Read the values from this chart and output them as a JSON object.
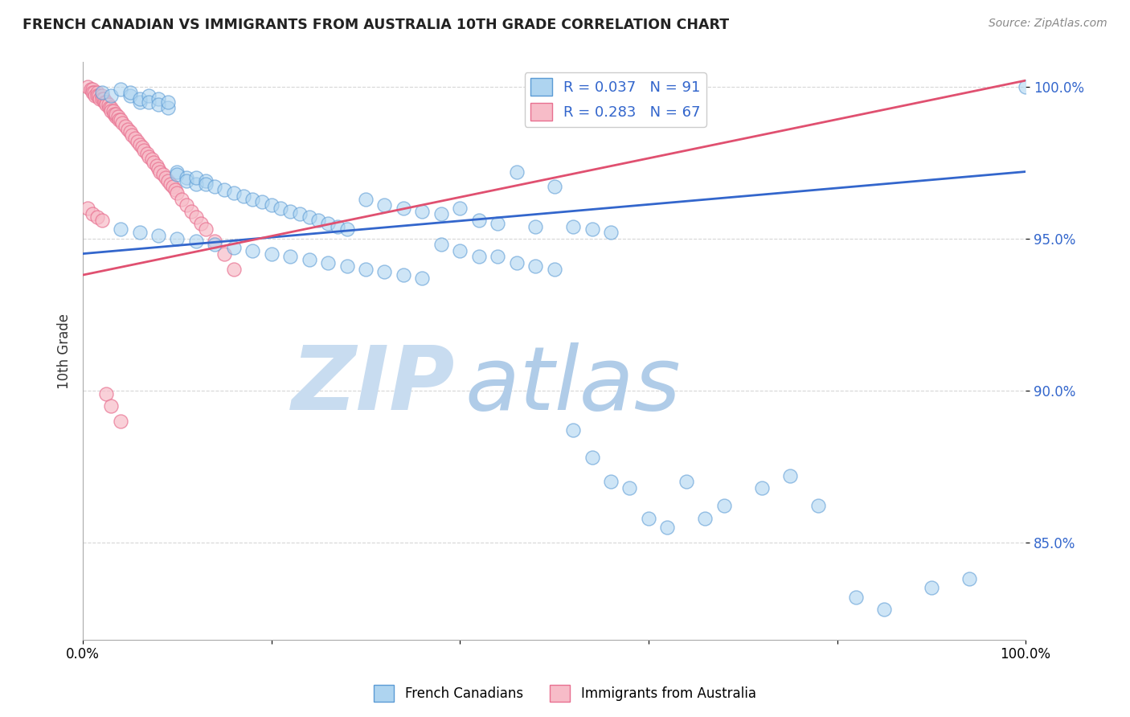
{
  "title": "FRENCH CANADIAN VS IMMIGRANTS FROM AUSTRALIA 10TH GRADE CORRELATION CHART",
  "source": "Source: ZipAtlas.com",
  "ylabel": "10th Grade",
  "blue_R": 0.037,
  "blue_N": 91,
  "pink_R": 0.283,
  "pink_N": 67,
  "blue_label": "French Canadians",
  "pink_label": "Immigrants from Australia",
  "xlim": [
    0.0,
    1.0
  ],
  "ylim": [
    0.818,
    1.008
  ],
  "yticks": [
    0.85,
    0.9,
    0.95,
    1.0
  ],
  "ytick_labels": [
    "85.0%",
    "90.0%",
    "95.0%",
    "100.0%"
  ],
  "blue_color": "#AED4F0",
  "pink_color": "#F7BCC8",
  "blue_edge_color": "#5B9BD5",
  "pink_edge_color": "#E87090",
  "blue_line_color": "#3366CC",
  "pink_line_color": "#E05070",
  "watermark_zip_color": "#C8DCF0",
  "watermark_atlas_color": "#B0CCE8",
  "background_color": "#FFFFFF",
  "grid_color": "#CCCCCC",
  "blue_trend_start_y": 0.945,
  "blue_trend_end_y": 0.972,
  "pink_trend_start_y": 0.938,
  "pink_trend_end_y": 1.002,
  "blue_scatter_x": [
    0.02,
    0.03,
    0.04,
    0.05,
    0.05,
    0.06,
    0.06,
    0.07,
    0.07,
    0.08,
    0.08,
    0.09,
    0.09,
    0.1,
    0.1,
    0.11,
    0.11,
    0.12,
    0.12,
    0.13,
    0.13,
    0.14,
    0.15,
    0.16,
    0.17,
    0.18,
    0.19,
    0.2,
    0.21,
    0.22,
    0.23,
    0.24,
    0.25,
    0.26,
    0.27,
    0.28,
    0.3,
    0.32,
    0.34,
    0.36,
    0.38,
    0.4,
    0.42,
    0.44,
    0.46,
    0.48,
    0.5,
    0.52,
    0.54,
    0.56,
    0.04,
    0.06,
    0.08,
    0.1,
    0.12,
    0.14,
    0.16,
    0.18,
    0.2,
    0.22,
    0.24,
    0.26,
    0.28,
    0.3,
    0.32,
    0.34,
    0.36,
    0.38,
    0.4,
    0.42,
    0.44,
    0.46,
    0.48,
    0.5,
    0.52,
    0.54,
    0.56,
    0.58,
    0.6,
    0.62,
    0.64,
    0.66,
    0.68,
    0.72,
    0.75,
    0.78,
    0.82,
    0.85,
    0.9,
    0.94,
    1.0
  ],
  "blue_scatter_y": [
    0.998,
    0.997,
    0.999,
    0.997,
    0.998,
    0.995,
    0.996,
    0.997,
    0.995,
    0.996,
    0.994,
    0.993,
    0.995,
    0.972,
    0.971,
    0.97,
    0.969,
    0.968,
    0.97,
    0.969,
    0.968,
    0.967,
    0.966,
    0.965,
    0.964,
    0.963,
    0.962,
    0.961,
    0.96,
    0.959,
    0.958,
    0.957,
    0.956,
    0.955,
    0.954,
    0.953,
    0.963,
    0.961,
    0.96,
    0.959,
    0.958,
    0.96,
    0.956,
    0.955,
    0.972,
    0.954,
    0.967,
    0.954,
    0.953,
    0.952,
    0.953,
    0.952,
    0.951,
    0.95,
    0.949,
    0.948,
    0.947,
    0.946,
    0.945,
    0.944,
    0.943,
    0.942,
    0.941,
    0.94,
    0.939,
    0.938,
    0.937,
    0.948,
    0.946,
    0.944,
    0.944,
    0.942,
    0.941,
    0.94,
    0.887,
    0.878,
    0.87,
    0.868,
    0.858,
    0.855,
    0.87,
    0.858,
    0.862,
    0.868,
    0.872,
    0.862,
    0.832,
    0.828,
    0.835,
    0.838,
    1.0
  ],
  "pink_scatter_x": [
    0.005,
    0.008,
    0.01,
    0.01,
    0.012,
    0.013,
    0.015,
    0.015,
    0.017,
    0.018,
    0.02,
    0.02,
    0.022,
    0.023,
    0.025,
    0.025,
    0.027,
    0.028,
    0.03,
    0.03,
    0.032,
    0.033,
    0.035,
    0.035,
    0.037,
    0.038,
    0.04,
    0.042,
    0.045,
    0.048,
    0.05,
    0.052,
    0.055,
    0.058,
    0.06,
    0.063,
    0.065,
    0.068,
    0.07,
    0.073,
    0.075,
    0.078,
    0.08,
    0.082,
    0.085,
    0.088,
    0.09,
    0.093,
    0.095,
    0.098,
    0.1,
    0.105,
    0.11,
    0.115,
    0.12,
    0.125,
    0.13,
    0.14,
    0.15,
    0.16,
    0.005,
    0.01,
    0.015,
    0.02,
    0.025,
    0.03,
    0.04
  ],
  "pink_scatter_y": [
    1.0,
    0.999,
    0.999,
    0.998,
    0.998,
    0.997,
    0.998,
    0.997,
    0.997,
    0.996,
    0.997,
    0.996,
    0.996,
    0.995,
    0.995,
    0.994,
    0.994,
    0.993,
    0.993,
    0.992,
    0.992,
    0.991,
    0.99,
    0.991,
    0.99,
    0.989,
    0.989,
    0.988,
    0.987,
    0.986,
    0.985,
    0.984,
    0.983,
    0.982,
    0.981,
    0.98,
    0.979,
    0.978,
    0.977,
    0.976,
    0.975,
    0.974,
    0.973,
    0.972,
    0.971,
    0.97,
    0.969,
    0.968,
    0.967,
    0.966,
    0.965,
    0.963,
    0.961,
    0.959,
    0.957,
    0.955,
    0.953,
    0.949,
    0.945,
    0.94,
    0.96,
    0.958,
    0.957,
    0.956,
    0.899,
    0.895,
    0.89
  ]
}
